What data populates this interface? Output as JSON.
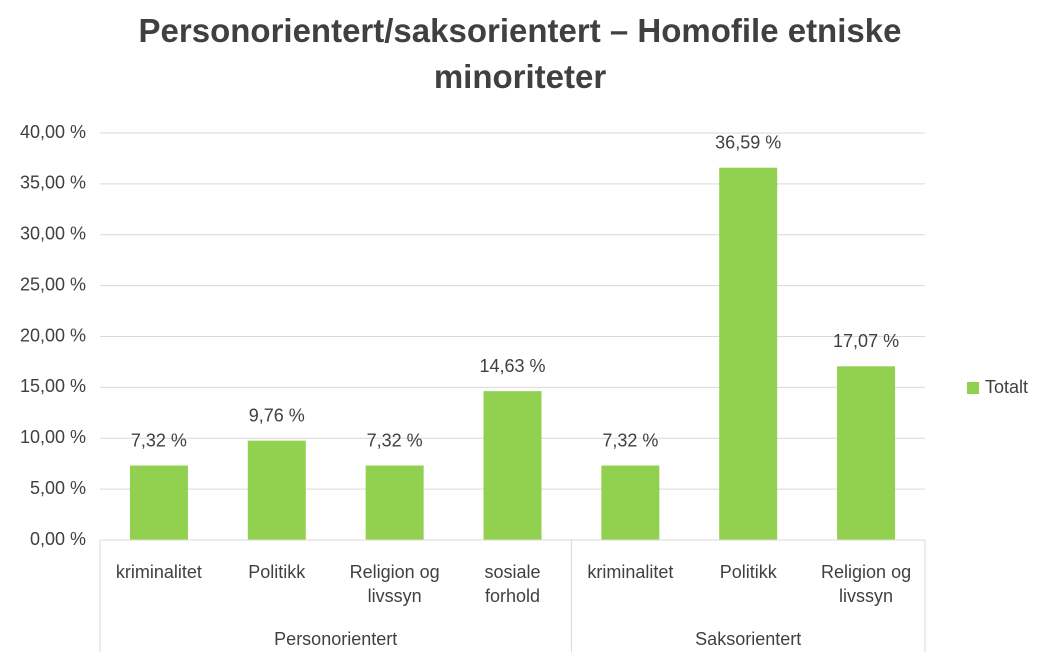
{
  "chart_data": {
    "type": "bar",
    "title": "Personorientert/saksorientert – Homofile etniske minoriteter",
    "categories": [
      "kriminalitet",
      "Politikk",
      "Religion og livssyn",
      "sosiale forhold",
      "kriminalitet",
      "Politikk",
      "Religion og livssyn"
    ],
    "groups": [
      {
        "name": "Personorientert",
        "size": 4
      },
      {
        "name": "Saksorientert",
        "size": 3
      }
    ],
    "series": [
      {
        "name": "Totalt",
        "color": "#92d050",
        "values": [
          7.32,
          9.76,
          7.32,
          14.63,
          7.32,
          36.59,
          17.07
        ],
        "value_labels": [
          "7,32 %",
          "9,76 %",
          "7,32 %",
          "14,63 %",
          "7,32 %",
          "36,59 %",
          "17,07 %"
        ]
      }
    ],
    "ylim": [
      0,
      40
    ],
    "yticks": [
      {
        "value": 0,
        "label": "0,00 %"
      },
      {
        "value": 5,
        "label": "5,00 %"
      },
      {
        "value": 10,
        "label": "10,00 %"
      },
      {
        "value": 15,
        "label": "15,00 %"
      },
      {
        "value": 20,
        "label": "20,00 %"
      },
      {
        "value": 25,
        "label": "25,00 %"
      },
      {
        "value": 30,
        "label": "30,00 %"
      },
      {
        "value": 35,
        "label": "35,00 %"
      },
      {
        "value": 40,
        "label": "40,00 %"
      }
    ],
    "grid": true,
    "legend": "right"
  }
}
